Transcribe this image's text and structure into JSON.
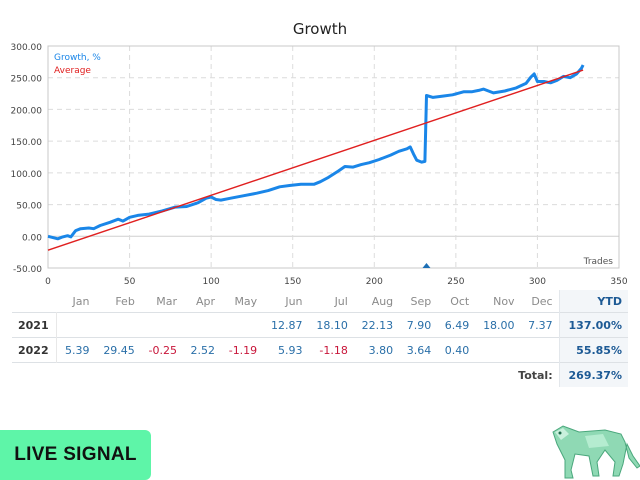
{
  "chart_data": {
    "type": "line",
    "title": "Growth",
    "xlabel": "Trades",
    "ylabel": "",
    "xlim": [
      0,
      350
    ],
    "ylim": [
      -50,
      300
    ],
    "xticks": [
      0,
      50,
      100,
      150,
      200,
      250,
      300,
      350
    ],
    "yticks": [
      "300.00",
      "250.00",
      "200.00",
      "150.00",
      "100.00",
      "50.00",
      "0.00",
      "-50.00"
    ],
    "ytick_values": [
      300,
      250,
      200,
      150,
      100,
      50,
      0,
      -50
    ],
    "grid": true,
    "legend": [
      "Growth, %",
      "Average"
    ],
    "legend_position": "top-left",
    "series": [
      {
        "name": "Growth, %",
        "color": "#1a86e8",
        "points": [
          [
            0,
            0
          ],
          [
            3,
            -2
          ],
          [
            6,
            -4
          ],
          [
            9,
            -1
          ],
          [
            12,
            1
          ],
          [
            14,
            -1
          ],
          [
            17,
            9
          ],
          [
            20,
            12
          ],
          [
            25,
            13
          ],
          [
            28,
            12
          ],
          [
            32,
            17
          ],
          [
            38,
            22
          ],
          [
            43,
            27
          ],
          [
            46,
            24
          ],
          [
            50,
            30
          ],
          [
            55,
            33
          ],
          [
            62,
            35
          ],
          [
            70,
            40
          ],
          [
            78,
            46
          ],
          [
            85,
            47
          ],
          [
            92,
            53
          ],
          [
            97,
            60
          ],
          [
            100,
            62
          ],
          [
            103,
            58
          ],
          [
            106,
            57
          ],
          [
            112,
            60
          ],
          [
            120,
            64
          ],
          [
            128,
            68
          ],
          [
            135,
            72
          ],
          [
            142,
            78
          ],
          [
            148,
            80
          ],
          [
            155,
            82
          ],
          [
            163,
            82
          ],
          [
            167,
            86
          ],
          [
            172,
            93
          ],
          [
            178,
            103
          ],
          [
            182,
            110
          ],
          [
            187,
            109
          ],
          [
            192,
            113
          ],
          [
            197,
            116
          ],
          [
            203,
            121
          ],
          [
            210,
            128
          ],
          [
            215,
            134
          ],
          [
            220,
            138
          ],
          [
            222,
            141
          ],
          [
            224,
            130
          ],
          [
            226,
            120
          ],
          [
            229,
            117
          ],
          [
            231,
            118
          ],
          [
            232,
            222
          ],
          [
            236,
            219
          ],
          [
            242,
            221
          ],
          [
            248,
            223
          ],
          [
            255,
            228
          ],
          [
            260,
            228
          ],
          [
            264,
            230
          ],
          [
            267,
            232
          ],
          [
            273,
            226
          ],
          [
            280,
            229
          ],
          [
            287,
            234
          ],
          [
            293,
            241
          ],
          [
            296,
            251
          ],
          [
            298,
            256
          ],
          [
            300,
            244
          ],
          [
            304,
            244
          ],
          [
            308,
            242
          ],
          [
            312,
            246
          ],
          [
            316,
            252
          ],
          [
            320,
            250
          ],
          [
            324,
            256
          ],
          [
            327,
            265
          ],
          [
            328,
            270
          ]
        ]
      },
      {
        "name": "Average",
        "color": "#e02020",
        "points": [
          [
            0,
            -22
          ],
          [
            328,
            262
          ]
        ]
      }
    ],
    "marker": {
      "trade": 232,
      "color": "#1d6fb5"
    }
  },
  "table": {
    "months": [
      "Jan",
      "Feb",
      "Mar",
      "Apr",
      "May",
      "Jun",
      "Jul",
      "Aug",
      "Sep",
      "Oct",
      "Nov",
      "Dec"
    ],
    "ytd_header": "YTD",
    "rows": [
      {
        "year": "2021",
        "values": [
          "",
          "",
          "",
          "",
          "",
          "12.87",
          "18.10",
          "22.13",
          "7.90",
          "6.49",
          "18.00",
          "7.37"
        ],
        "ytd": "137.00%"
      },
      {
        "year": "2022",
        "values": [
          "5.39",
          "29.45",
          "-0.25",
          "2.52",
          "-1.19",
          "5.93",
          "-1.18",
          "3.80",
          "3.64",
          "0.40",
          "",
          ""
        ],
        "ytd": "55.85%"
      }
    ],
    "total_label": "Total:",
    "total_value": "269.37%"
  },
  "badge": {
    "label": "LIVE SIGNAL",
    "color": "#5ef5a8"
  },
  "mascot": {
    "icon": "robot-panther-logo"
  }
}
